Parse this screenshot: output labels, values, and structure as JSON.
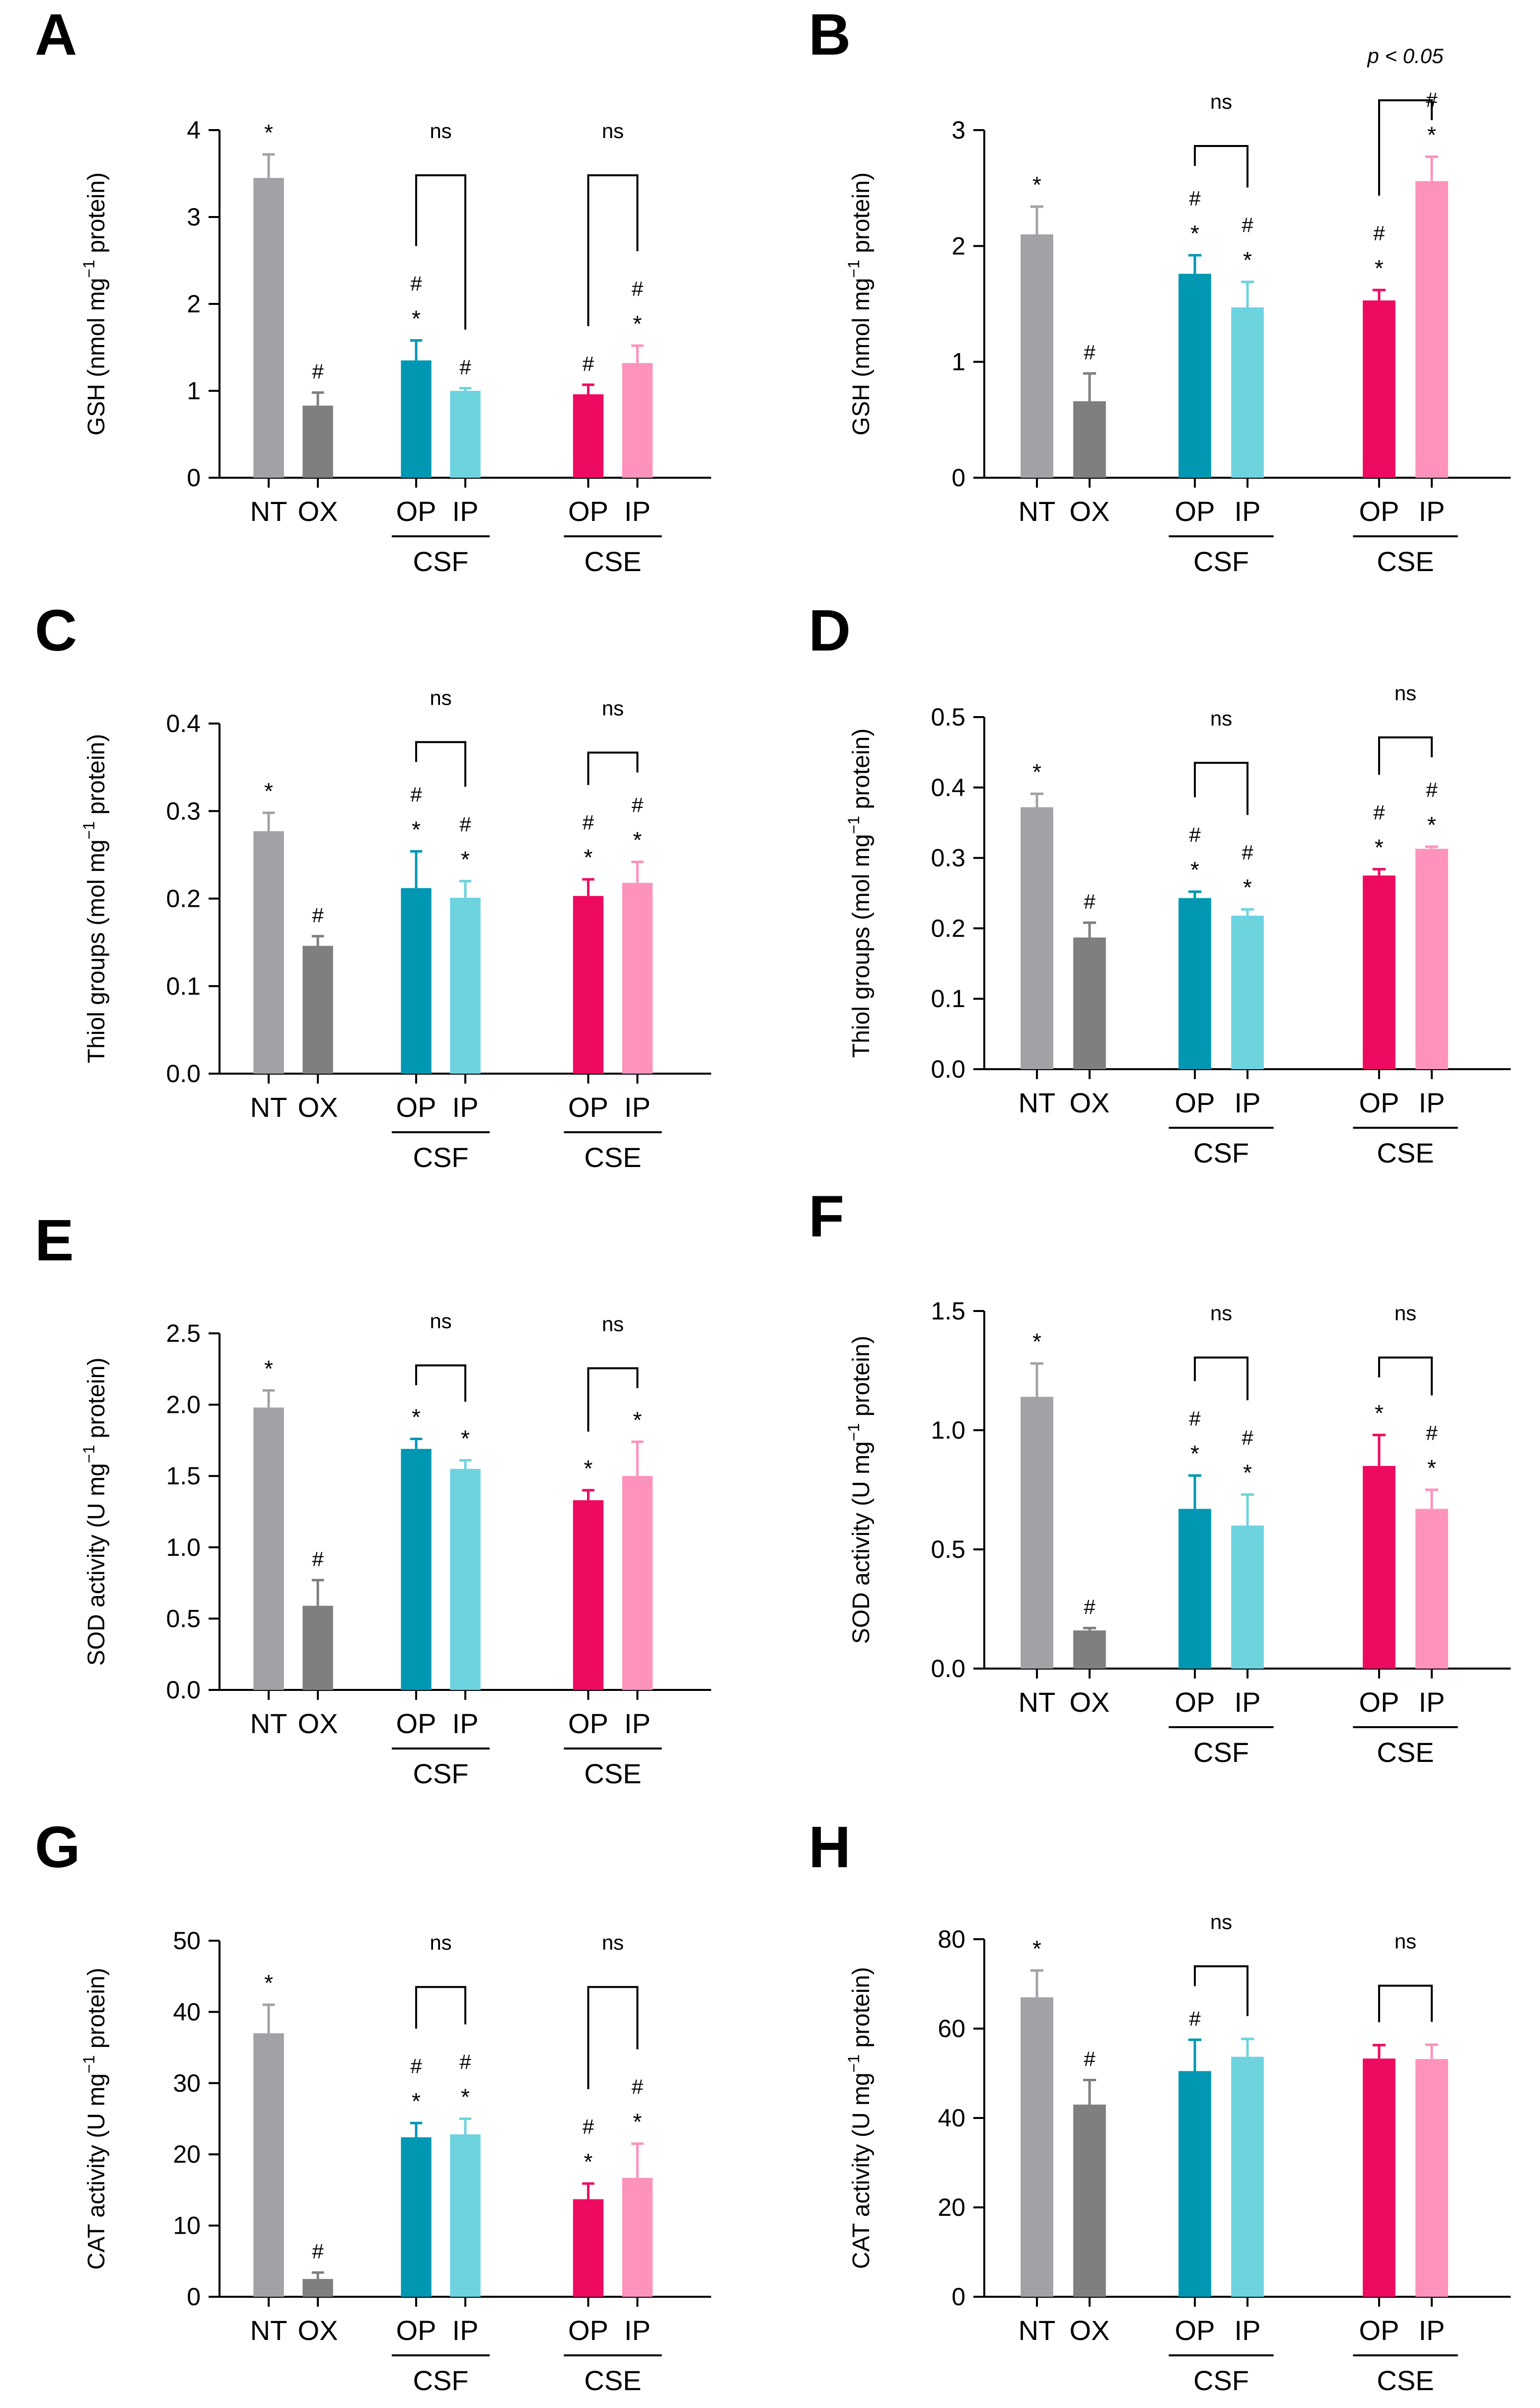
{
  "figure": {
    "group_labels": [
      "CSF",
      "CSE"
    ],
    "ylabel_parts": {
      "GSH": [
        "GSH (nmol mg",
        "−1",
        " protein)"
      ],
      "Thiol": [
        "Thiol groups (mol mg",
        "−1",
        " protein)"
      ],
      "SOD": [
        "SOD activity (U mg",
        "−1",
        " protein)"
      ],
      "CAT": [
        "CAT activity (U mg",
        "−1",
        " protein)"
      ]
    }
  },
  "colors": {
    "NT": "#a2a1a6",
    "OX": "#7f7f7f",
    "CSF_OP": "#0097b2",
    "CSF_IP": "#6dd3df",
    "CSE_OP": "#ee0a60",
    "CSE_IP": "#fd92bd"
  },
  "chart_data": [
    {
      "panel": "A",
      "type": "bar",
      "ylabel_key": "GSH",
      "categories": [
        "NT",
        "OX",
        "OP",
        "IP",
        "OP",
        "IP"
      ],
      "values": [
        3.45,
        0.83,
        1.35,
        1.0,
        0.96,
        1.32
      ],
      "errors": [
        0.27,
        0.15,
        0.23,
        0.03,
        0.11,
        0.2
      ],
      "ylim": [
        0,
        4
      ],
      "yticks": [
        "0",
        "1",
        "2",
        "3",
        "4"
      ],
      "marks": [
        [
          "*"
        ],
        [
          "#"
        ],
        [
          "*",
          "#"
        ],
        [
          "#"
        ],
        [
          "#"
        ],
        [
          "*",
          "#"
        ]
      ],
      "comparisons": [
        {
          "from": 2,
          "to": 3,
          "label": "ns"
        },
        {
          "from": 4,
          "to": 5,
          "label": "ns"
        }
      ]
    },
    {
      "panel": "B",
      "type": "bar",
      "ylabel_key": "GSH",
      "categories": [
        "NT",
        "OX",
        "OP",
        "IP",
        "OP",
        "IP"
      ],
      "values": [
        2.1,
        0.66,
        1.76,
        1.47,
        1.53,
        2.56
      ],
      "errors": [
        0.24,
        0.24,
        0.16,
        0.22,
        0.09,
        0.21
      ],
      "ylim": [
        0,
        3
      ],
      "yticks": [
        "0",
        "1",
        "2",
        "3"
      ],
      "marks": [
        [
          "*"
        ],
        [
          "#"
        ],
        [
          "*",
          "#"
        ],
        [
          "*",
          "#"
        ],
        [
          "*",
          "#"
        ],
        [
          "*",
          "#"
        ]
      ],
      "comparisons": [
        {
          "from": 2,
          "to": 3,
          "label": "ns"
        },
        {
          "from": 4,
          "to": 5,
          "label": "p < 0.05"
        }
      ]
    },
    {
      "panel": "C",
      "type": "bar",
      "ylabel_key": "Thiol",
      "categories": [
        "NT",
        "OX",
        "OP",
        "IP",
        "OP",
        "IP"
      ],
      "values": [
        0.277,
        0.146,
        0.212,
        0.201,
        0.203,
        0.218
      ],
      "errors": [
        0.021,
        0.011,
        0.042,
        0.019,
        0.019,
        0.024
      ],
      "ylim": [
        0,
        0.4
      ],
      "yticks": [
        "0.0",
        "0.1",
        "0.2",
        "0.3",
        "0.4"
      ],
      "marks": [
        [
          "*"
        ],
        [
          "#"
        ],
        [
          "*",
          "#"
        ],
        [
          "*",
          "#"
        ],
        [
          "*",
          "#"
        ],
        [
          "*",
          "#"
        ]
      ],
      "comparisons": [
        {
          "from": 2,
          "to": 3,
          "label": "ns"
        },
        {
          "from": 4,
          "to": 5,
          "label": "ns"
        }
      ]
    },
    {
      "panel": "D",
      "type": "bar",
      "ylabel_key": "Thiol",
      "categories": [
        "NT",
        "OX",
        "OP",
        "IP",
        "OP",
        "IP"
      ],
      "values": [
        0.372,
        0.187,
        0.243,
        0.218,
        0.275,
        0.313
      ],
      "errors": [
        0.019,
        0.021,
        0.009,
        0.009,
        0.009,
        0.003
      ],
      "ylim": [
        0,
        0.5
      ],
      "yticks": [
        "0.0",
        "0.1",
        "0.2",
        "0.3",
        "0.4",
        "0.5"
      ],
      "marks": [
        [
          "*"
        ],
        [
          "#"
        ],
        [
          "*",
          "#"
        ],
        [
          "*",
          "#"
        ],
        [
          "*",
          "#"
        ],
        [
          "*",
          "#"
        ]
      ],
      "comparisons": [
        {
          "from": 2,
          "to": 3,
          "label": "ns"
        },
        {
          "from": 4,
          "to": 5,
          "label": "ns"
        }
      ]
    },
    {
      "panel": "E",
      "type": "bar",
      "ylabel_key": "SOD",
      "categories": [
        "NT",
        "OX",
        "OP",
        "IP",
        "OP",
        "IP"
      ],
      "values": [
        1.98,
        0.59,
        1.69,
        1.55,
        1.33,
        1.5
      ],
      "errors": [
        0.12,
        0.18,
        0.07,
        0.06,
        0.07,
        0.24
      ],
      "ylim": [
        0,
        2.5
      ],
      "yticks": [
        "0.0",
        "0.5",
        "1.0",
        "1.5",
        "2.0",
        "2.5"
      ],
      "marks": [
        [
          "*"
        ],
        [
          "#"
        ],
        [
          "*"
        ],
        [
          "*"
        ],
        [
          "*"
        ],
        [
          "*"
        ]
      ],
      "comparisons": [
        {
          "from": 2,
          "to": 3,
          "label": "ns"
        },
        {
          "from": 4,
          "to": 5,
          "label": "ns"
        }
      ]
    },
    {
      "panel": "F",
      "type": "bar",
      "ylabel_key": "SOD",
      "categories": [
        "NT",
        "OX",
        "OP",
        "IP",
        "OP",
        "IP"
      ],
      "values": [
        1.14,
        0.16,
        0.67,
        0.6,
        0.85,
        0.67
      ],
      "errors": [
        0.14,
        0.01,
        0.14,
        0.13,
        0.13,
        0.08
      ],
      "ylim": [
        0,
        1.5
      ],
      "yticks": [
        "0.0",
        "0.5",
        "1.0",
        "1.5"
      ],
      "marks": [
        [
          "*"
        ],
        [
          "#"
        ],
        [
          "*",
          "#"
        ],
        [
          "*",
          "#"
        ],
        [
          "*"
        ],
        [
          "*",
          "#"
        ]
      ],
      "comparisons": [
        {
          "from": 2,
          "to": 3,
          "label": "ns"
        },
        {
          "from": 4,
          "to": 5,
          "label": "ns"
        }
      ]
    },
    {
      "panel": "G",
      "type": "bar",
      "ylabel_key": "CAT",
      "categories": [
        "NT",
        "OX",
        "OP",
        "IP",
        "OP",
        "IP"
      ],
      "values": [
        37,
        2.5,
        22.4,
        22.8,
        13.7,
        16.7
      ],
      "errors": [
        4,
        0.9,
        2,
        2.2,
        2.2,
        4.8
      ],
      "ylim": [
        0,
        50
      ],
      "yticks": [
        "0",
        "10",
        "20",
        "30",
        "40",
        "50"
      ],
      "marks": [
        [
          "*"
        ],
        [
          "#"
        ],
        [
          "*",
          "#"
        ],
        [
          "*",
          "#"
        ],
        [
          "*",
          "#"
        ],
        [
          "*",
          "#"
        ]
      ],
      "comparisons": [
        {
          "from": 2,
          "to": 3,
          "label": "ns"
        },
        {
          "from": 4,
          "to": 5,
          "label": "ns"
        }
      ]
    },
    {
      "panel": "H",
      "type": "bar",
      "ylabel_key": "CAT",
      "categories": [
        "NT",
        "OX",
        "OP",
        "IP",
        "OP",
        "IP"
      ],
      "values": [
        67,
        43,
        50.5,
        53.7,
        53.3,
        53.2
      ],
      "errors": [
        6,
        5.5,
        7,
        4,
        3,
        3.2
      ],
      "ylim": [
        0,
        80
      ],
      "yticks": [
        "0",
        "20",
        "40",
        "60",
        "80"
      ],
      "marks": [
        [
          "*"
        ],
        [
          "#"
        ],
        [
          "#"
        ],
        [],
        [],
        []
      ],
      "comparisons": [
        {
          "from": 2,
          "to": 3,
          "label": "ns"
        },
        {
          "from": 4,
          "to": 5,
          "label": "ns"
        }
      ]
    }
  ]
}
